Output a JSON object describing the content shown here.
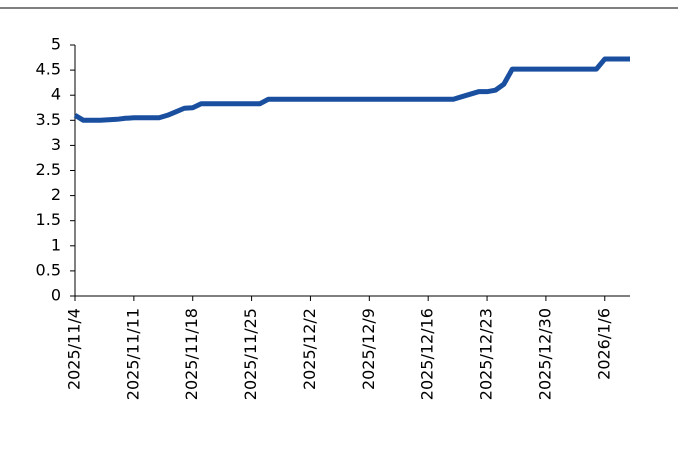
{
  "chart_data": {
    "type": "line",
    "x": [
      "2025/11/4",
      "2025/11/5",
      "2025/11/6",
      "2025/11/7",
      "2025/11/8",
      "2025/11/9",
      "2025/11/10",
      "2025/11/11",
      "2025/11/12",
      "2025/11/13",
      "2025/11/14",
      "2025/11/15",
      "2025/11/16",
      "2025/11/17",
      "2025/11/18",
      "2025/11/19",
      "2025/11/20",
      "2025/11/21",
      "2025/11/22",
      "2025/11/23",
      "2025/11/24",
      "2025/11/25",
      "2025/11/26",
      "2025/11/27",
      "2025/11/28",
      "2025/11/29",
      "2025/11/30",
      "2025/12/1",
      "2025/12/2",
      "2025/12/3",
      "2025/12/4",
      "2025/12/5",
      "2025/12/6",
      "2025/12/7",
      "2025/12/8",
      "2025/12/9",
      "2025/12/10",
      "2025/12/11",
      "2025/12/12",
      "2025/12/13",
      "2025/12/14",
      "2025/12/15",
      "2025/12/16",
      "2025/12/17",
      "2025/12/18",
      "2025/12/19",
      "2025/12/20",
      "2025/12/21",
      "2025/12/22",
      "2025/12/23",
      "2025/12/24",
      "2025/12/25",
      "2025/12/26",
      "2025/12/27",
      "2025/12/28",
      "2025/12/29",
      "2025/12/30",
      "2025/12/31",
      "2026/1/1",
      "2026/1/2",
      "2026/1/3",
      "2026/1/4",
      "2026/1/5",
      "2026/1/6",
      "2026/1/7",
      "2026/1/8",
      "2026/1/9"
    ],
    "series": [
      {
        "color": "#1a4fa0",
        "values": [
          3.6,
          3.5,
          3.5,
          3.5,
          3.51,
          3.52,
          3.54,
          3.55,
          3.55,
          3.55,
          3.55,
          3.6,
          3.67,
          3.74,
          3.75,
          3.83,
          3.83,
          3.83,
          3.83,
          3.83,
          3.83,
          3.83,
          3.83,
          3.92,
          3.92,
          3.92,
          3.92,
          3.92,
          3.92,
          3.92,
          3.92,
          3.92,
          3.92,
          3.92,
          3.92,
          3.92,
          3.92,
          3.92,
          3.92,
          3.92,
          3.92,
          3.92,
          3.92,
          3.92,
          3.92,
          3.92,
          3.97,
          4.02,
          4.07,
          4.07,
          4.1,
          4.22,
          4.52,
          4.52,
          4.52,
          4.52,
          4.52,
          4.52,
          4.52,
          4.52,
          4.52,
          4.52,
          4.52,
          4.72,
          4.72,
          4.72,
          4.72
        ]
      }
    ],
    "xticks": [
      "2025/11/4",
      "2025/11/11",
      "2025/11/18",
      "2025/11/25",
      "2025/12/2",
      "2025/12/9",
      "2025/12/16",
      "2025/12/23",
      "2025/12/30",
      "2026/1/6"
    ],
    "ylim": [
      0,
      5
    ],
    "yticks": [
      0,
      0.5,
      1,
      1.5,
      2,
      2.5,
      3,
      3.5,
      4,
      4.5,
      5
    ]
  }
}
